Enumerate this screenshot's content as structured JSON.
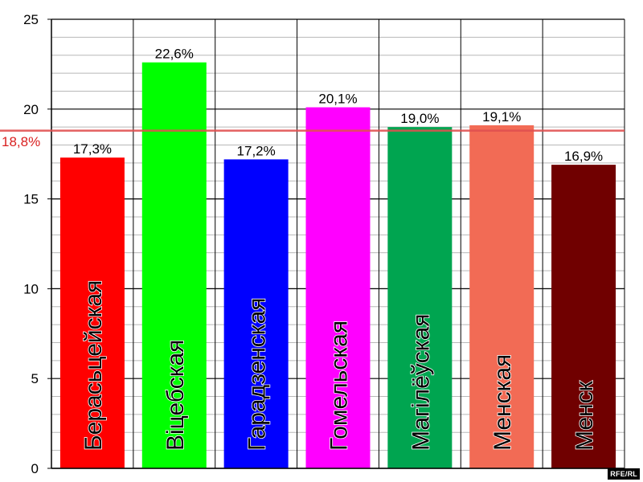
{
  "chart_data": {
    "type": "bar",
    "categories": [
      "Берасьцейская",
      "Віцебская",
      "Гарадзенская",
      "Гомельская",
      "Магілёўская",
      "Менская",
      "Менск"
    ],
    "values": [
      17.3,
      22.6,
      17.2,
      20.1,
      19.0,
      19.1,
      16.9
    ],
    "value_labels": [
      "17,3%",
      "22,6%",
      "17,2%",
      "20,1%",
      "19,0%",
      "19,1%",
      "16,9%"
    ],
    "colors": [
      "#ff0000",
      "#00ff00",
      "#0000ff",
      "#ff00ff",
      "#00a550",
      "#f26b55",
      "#700000"
    ],
    "yticks": [
      "0",
      "5",
      "10",
      "15",
      "20",
      "25"
    ],
    "ylim": [
      0,
      25
    ],
    "grid": true,
    "reference_line": {
      "value": 18.8,
      "label": "18,8%",
      "color": "#e05050"
    }
  },
  "credit": "RFE/RL"
}
